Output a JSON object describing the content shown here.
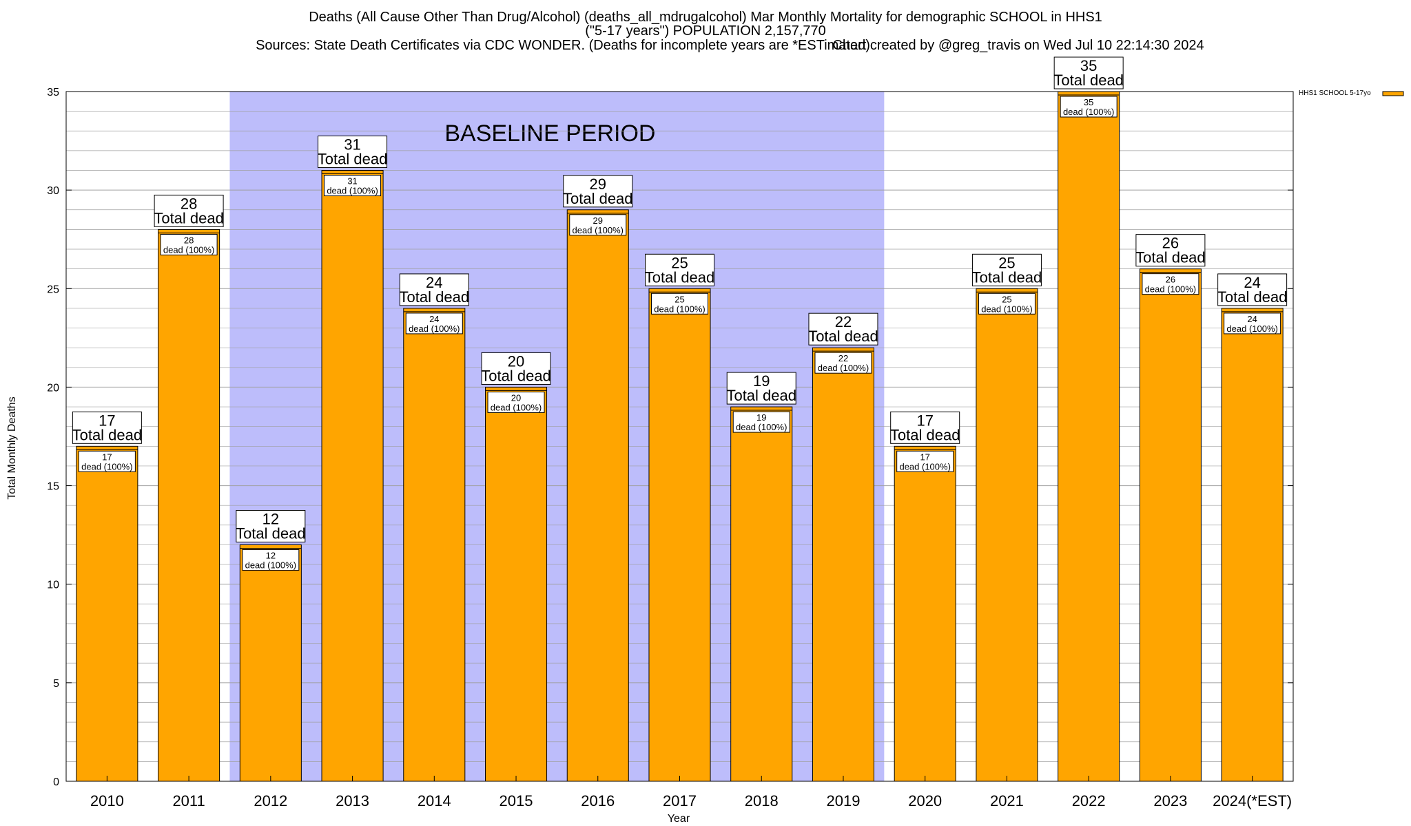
{
  "header": {
    "title_line1": "Deaths (All Cause Other Than Drug/Alcohol) (deaths_all_mdrugalcohol) Mar Monthly Mortality for demographic SCHOOL in HHS1",
    "title_line2": "(\"5-17 years\") POPULATION 2,157,770",
    "sources": "Sources: State Death Certificates via CDC WONDER. (Deaths for incomplete years are *ESTimated)",
    "credit": "Chart created by @greg_travis on Wed Jul 10 22:14:30 2024"
  },
  "colors": {
    "bar_fill": "#FFA500",
    "baseline_fill": "#BDBDFB",
    "grid": "#A0A0A0"
  },
  "chart_data": {
    "type": "bar",
    "title": "Deaths (All Cause Other Than Drug/Alcohol) (deaths_all_mdrugalcohol) Mar Monthly Mortality for demographic SCHOOL in HHS1",
    "xlabel": "Year",
    "ylabel": "Total Monthly Deaths",
    "ylim": [
      0,
      35
    ],
    "yticks": [
      0,
      5,
      10,
      15,
      20,
      25,
      30,
      35
    ],
    "grid": true,
    "legend_position": "top-right",
    "categories": [
      "2010",
      "2011",
      "2012",
      "2013",
      "2014",
      "2015",
      "2016",
      "2017",
      "2018",
      "2019",
      "2020",
      "2021",
      "2022",
      "2023",
      "2024(*EST)"
    ],
    "series": [
      {
        "name": "HHS1 SCHOOL 5-17yo",
        "values": [
          17,
          28,
          12,
          31,
          24,
          20,
          29,
          25,
          19,
          22,
          17,
          25,
          35,
          26,
          24
        ]
      }
    ],
    "total_label_suffix": "Total dead",
    "inner_label_suffix": "dead (100%)",
    "baseline_region": {
      "label": "BASELINE PERIOD",
      "from_category": "2012",
      "to_category": "2019"
    }
  }
}
